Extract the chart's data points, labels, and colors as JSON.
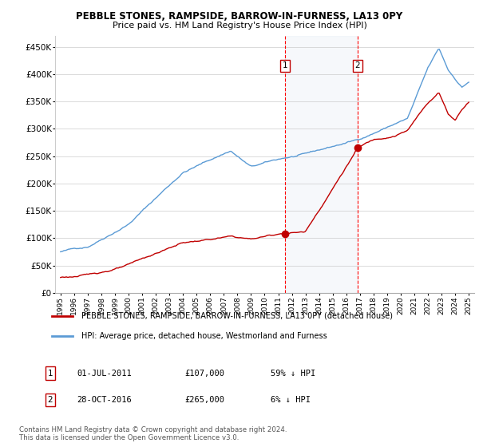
{
  "title": "PEBBLE STONES, RAMPSIDE, BARROW-IN-FURNESS, LA13 0PY",
  "subtitle": "Price paid vs. HM Land Registry's House Price Index (HPI)",
  "legend_line1": "PEBBLE STONES, RAMPSIDE, BARROW-IN-FURNESS, LA13 0PY (detached house)",
  "legend_line2": "HPI: Average price, detached house, Westmorland and Furness",
  "transaction1_label": "1",
  "transaction1_date": "01-JUL-2011",
  "transaction1_price": "£107,000",
  "transaction1_hpi": "59% ↓ HPI",
  "transaction2_label": "2",
  "transaction2_date": "28-OCT-2016",
  "transaction2_price": "£265,000",
  "transaction2_hpi": "6% ↓ HPI",
  "footer": "Contains HM Land Registry data © Crown copyright and database right 2024.\nThis data is licensed under the Open Government Licence v3.0.",
  "hpi_color": "#5b9bd5",
  "price_color": "#c00000",
  "vline_color": "#ff0000",
  "shade_color": "#dce6f1",
  "ylim": [
    0,
    470000
  ],
  "yticks": [
    0,
    50000,
    100000,
    150000,
    200000,
    250000,
    300000,
    350000,
    400000,
    450000
  ],
  "t1_x": 2011.5,
  "t1_y": 107000,
  "t2_x": 2016.83,
  "t2_y": 265000,
  "xmin": 1994.6,
  "xmax": 2025.4
}
